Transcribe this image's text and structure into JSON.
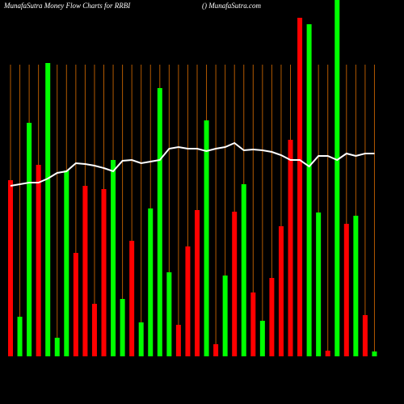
{
  "chart_data": {
    "type": "bar",
    "title": "MunafaSutra  Money Flow  Charts for RRBI",
    "subtitle": "() MunafaSutra.com",
    "categories": [
      null,
      null,
      null,
      null,
      null,
      null,
      null,
      null,
      null,
      null,
      null,
      null,
      null,
      null,
      null,
      null,
      null,
      null,
      null,
      null,
      null,
      null,
      null,
      null,
      null,
      null,
      null,
      null,
      null,
      null,
      null,
      null,
      null,
      null,
      null,
      null,
      null,
      null,
      null,
      null
    ],
    "series": [
      {
        "type": "bar",
        "values": [
          218,
          49,
          289,
          237,
          363,
          23,
          230,
          128,
          211,
          65,
          207,
          243,
          71,
          143,
          42,
          183,
          332,
          104,
          39,
          136,
          181,
          292,
          15,
          100,
          179,
          213,
          79,
          44,
          97,
          161,
          268,
          419,
          411,
          178,
          7,
          441,
          164,
          174,
          51,
          6
        ],
        "colors": [
          "#ff0000",
          "#00ff00",
          "#00ff00",
          "#ff0000",
          "#00ff00",
          "#00ff00",
          "#00ff00",
          "#ff0000",
          "#ff0000",
          "#ff0000",
          "#ff0000",
          "#00ff00",
          "#00ff00",
          "#ff0000",
          "#00ff00",
          "#00ff00",
          "#00ff00",
          "#00ff00",
          "#ff0000",
          "#ff0000",
          "#ff0000",
          "#00ff00",
          "#ff0000",
          "#00ff00",
          "#ff0000",
          "#00ff00",
          "#ff0000",
          "#00ff00",
          "#ff0000",
          "#ff0000",
          "#ff0000",
          "#ff0000",
          "#00ff00",
          "#00ff00",
          "#ff0000",
          "#00ff00",
          "#ff0000",
          "#00ff00",
          "#ff0000",
          "#00ff00"
        ]
      },
      {
        "type": "line",
        "color": "#ffffff",
        "values": [
          211,
          213,
          215,
          215,
          220,
          227,
          229,
          239,
          238,
          236,
          233,
          229,
          242,
          243,
          239,
          241,
          243,
          257,
          259,
          257,
          257,
          254,
          257,
          259,
          264,
          255,
          256,
          255,
          253,
          249,
          243,
          243,
          235,
          248,
          248,
          243,
          251,
          248,
          251,
          251
        ]
      }
    ],
    "ylim": [
      0,
      441
    ],
    "guide_color": "#b35900"
  }
}
